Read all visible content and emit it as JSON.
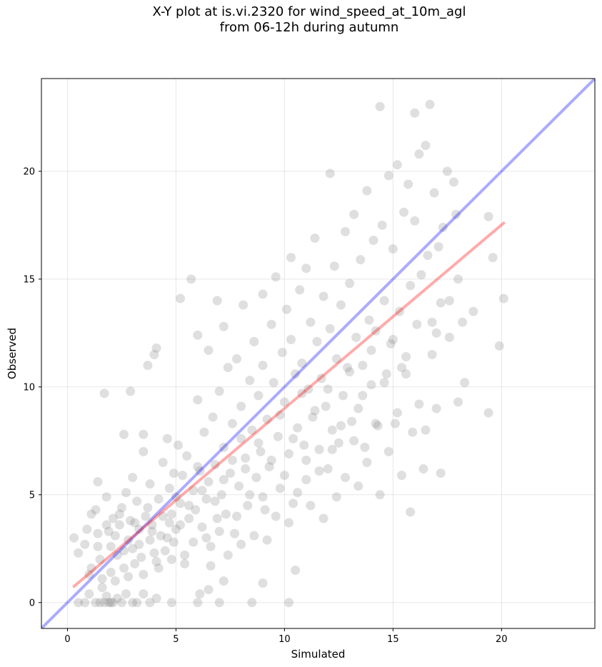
{
  "chart_data": {
    "type": "scatter",
    "title": "X-Y plot at is.vi.2320 for wind_speed_at_10m_agl",
    "subtitle": "from 06-12h during autumn",
    "xlabel": "Simulated",
    "ylabel": "Observed",
    "xlim": [
      -1.2,
      24.3
    ],
    "ylim": [
      -1.2,
      24.3
    ],
    "xticks": [
      0,
      5,
      10,
      15,
      20
    ],
    "yticks": [
      0,
      5,
      10,
      15,
      20
    ],
    "grid": true,
    "point_color": "#808080",
    "point_opacity": 0.25,
    "series": [
      {
        "name": "",
        "points": [
          [
            0.3,
            3.0
          ],
          [
            0.5,
            2.3
          ],
          [
            0.8,
            2.7
          ],
          [
            0.9,
            3.4
          ],
          [
            1.1,
            1.6
          ],
          [
            1.1,
            4.1
          ],
          [
            1.3,
            4.3
          ],
          [
            1.4,
            5.6
          ],
          [
            1.4,
            3.2
          ],
          [
            1.5,
            2.0
          ],
          [
            1.6,
            0.7
          ],
          [
            1.7,
            9.7
          ],
          [
            1.8,
            4.9
          ],
          [
            1.9,
            3.3
          ],
          [
            2.0,
            2.6
          ],
          [
            2.0,
            1.4
          ],
          [
            2.1,
            3.9
          ],
          [
            2.2,
            3.1
          ],
          [
            2.3,
            2.2
          ],
          [
            2.4,
            3.6
          ],
          [
            2.5,
            4.4
          ],
          [
            2.6,
            7.8
          ],
          [
            2.6,
            1.6
          ],
          [
            2.7,
            5.1
          ],
          [
            2.8,
            2.9
          ],
          [
            2.9,
            9.8
          ],
          [
            2.9,
            3.8
          ],
          [
            3.0,
            5.8
          ],
          [
            3.0,
            2.5
          ],
          [
            3.1,
            1.8
          ],
          [
            3.2,
            4.7
          ],
          [
            3.3,
            3.4
          ],
          [
            3.4,
            2.1
          ],
          [
            3.5,
            7.8
          ],
          [
            3.5,
            7.0
          ],
          [
            3.6,
            4.0
          ],
          [
            3.7,
            11.0
          ],
          [
            3.8,
            2.9
          ],
          [
            3.8,
            5.5
          ],
          [
            3.9,
            3.6
          ],
          [
            4.0,
            11.5
          ],
          [
            4.1,
            11.8
          ],
          [
            4.1,
            1.9
          ],
          [
            4.2,
            4.8
          ],
          [
            4.3,
            3.1
          ],
          [
            4.4,
            6.5
          ],
          [
            4.5,
            2.4
          ],
          [
            4.6,
            7.6
          ],
          [
            4.7,
            5.3
          ],
          [
            4.7,
            3.7
          ],
          [
            4.8,
            4.1
          ],
          [
            4.9,
            6.0
          ],
          [
            4.9,
            2.8
          ],
          [
            5.0,
            3.4
          ],
          [
            5.1,
            7.3
          ],
          [
            5.2,
            14.1
          ],
          [
            5.2,
            4.6
          ],
          [
            5.3,
            5.9
          ],
          [
            5.4,
            2.2
          ],
          [
            5.5,
            6.8
          ],
          [
            5.6,
            3.9
          ],
          [
            5.7,
            15.0
          ],
          [
            5.8,
            5.2
          ],
          [
            5.9,
            4.3
          ],
          [
            6.0,
            9.4
          ],
          [
            6.0,
            12.4
          ],
          [
            6.1,
            6.1
          ],
          [
            6.2,
            3.5
          ],
          [
            6.3,
            7.9
          ],
          [
            6.4,
            4.8
          ],
          [
            6.5,
            11.7
          ],
          [
            6.5,
            5.6
          ],
          [
            6.6,
            2.6
          ],
          [
            6.7,
            8.6
          ],
          [
            6.8,
            6.4
          ],
          [
            6.9,
            14.0
          ],
          [
            6.9,
            3.9
          ],
          [
            7.0,
            9.8
          ],
          [
            7.1,
            5.0
          ],
          [
            7.2,
            12.8
          ],
          [
            7.2,
            7.2
          ],
          [
            7.3,
            4.1
          ],
          [
            7.4,
            10.9
          ],
          [
            7.5,
            6.0
          ],
          [
            7.6,
            8.3
          ],
          [
            7.7,
            3.2
          ],
          [
            7.8,
            11.3
          ],
          [
            7.9,
            5.4
          ],
          [
            8.0,
            9.1
          ],
          [
            8.0,
            7.6
          ],
          [
            8.1,
            13.8
          ],
          [
            8.2,
            6.7
          ],
          [
            8.3,
            4.5
          ],
          [
            8.4,
            10.3
          ],
          [
            8.5,
            8.0
          ],
          [
            8.6,
            12.1
          ],
          [
            8.7,
            5.8
          ],
          [
            8.8,
            9.6
          ],
          [
            8.9,
            7.0
          ],
          [
            9.0,
            14.3
          ],
          [
            9.0,
            11.0
          ],
          [
            9.1,
            4.3
          ],
          [
            9.2,
            8.5
          ],
          [
            9.3,
            6.3
          ],
          [
            9.4,
            12.9
          ],
          [
            9.5,
            10.2
          ],
          [
            9.6,
            15.1
          ],
          [
            9.7,
            7.7
          ],
          [
            9.8,
            5.3
          ],
          [
            9.9,
            11.6
          ],
          [
            10.0,
            9.3
          ],
          [
            10.1,
            13.6
          ],
          [
            10.2,
            6.9
          ],
          [
            10.3,
            16.0
          ],
          [
            10.3,
            12.2
          ],
          [
            10.4,
            4.6
          ],
          [
            10.5,
            10.6
          ],
          [
            10.6,
            8.1
          ],
          [
            10.7,
            14.5
          ],
          [
            10.8,
            11.1
          ],
          [
            10.9,
            7.3
          ],
          [
            11.0,
            15.5
          ],
          [
            11.0,
            5.7
          ],
          [
            11.1,
            9.9
          ],
          [
            11.2,
            13.0
          ],
          [
            11.3,
            8.6
          ],
          [
            11.4,
            16.9
          ],
          [
            11.5,
            12.1
          ],
          [
            11.6,
            7.1
          ],
          [
            11.7,
            10.4
          ],
          [
            11.8,
            14.2
          ],
          [
            11.9,
            9.1
          ],
          [
            12.0,
            6.2
          ],
          [
            12.1,
            19.9
          ],
          [
            12.1,
            12.7
          ],
          [
            12.2,
            8.0
          ],
          [
            12.3,
            15.6
          ],
          [
            12.4,
            11.3
          ],
          [
            12.5,
            7.4
          ],
          [
            12.6,
            13.8
          ],
          [
            12.7,
            9.6
          ],
          [
            12.8,
            17.2
          ],
          [
            12.9,
            10.9
          ],
          [
            13.0,
            14.8
          ],
          [
            13.1,
            8.4
          ],
          [
            13.2,
            18.0
          ],
          [
            13.3,
            12.3
          ],
          [
            13.4,
            9.0
          ],
          [
            13.5,
            15.9
          ],
          [
            13.6,
            11.0
          ],
          [
            13.7,
            7.2
          ],
          [
            13.8,
            19.1
          ],
          [
            13.9,
            13.1
          ],
          [
            14.0,
            10.1
          ],
          [
            14.1,
            16.8
          ],
          [
            14.2,
            12.6
          ],
          [
            14.3,
            8.2
          ],
          [
            14.4,
            23.0
          ],
          [
            14.5,
            17.5
          ],
          [
            14.6,
            14.0
          ],
          [
            14.7,
            10.6
          ],
          [
            14.8,
            19.8
          ],
          [
            14.9,
            12.0
          ],
          [
            15.0,
            16.4
          ],
          [
            15.1,
            8.3
          ],
          [
            15.2,
            20.3
          ],
          [
            15.3,
            13.5
          ],
          [
            15.4,
            10.9
          ],
          [
            15.5,
            18.1
          ],
          [
            15.6,
            11.4
          ],
          [
            15.7,
            19.4
          ],
          [
            15.8,
            14.7
          ],
          [
            15.9,
            7.9
          ],
          [
            16.0,
            22.7
          ],
          [
            16.0,
            17.7
          ],
          [
            16.1,
            12.9
          ],
          [
            16.2,
            20.8
          ],
          [
            16.3,
            15.2
          ],
          [
            16.4,
            6.2
          ],
          [
            16.5,
            21.2
          ],
          [
            16.6,
            16.1
          ],
          [
            16.7,
            23.1
          ],
          [
            16.8,
            13.0
          ],
          [
            16.9,
            19.0
          ],
          [
            17.0,
            12.5
          ],
          [
            17.1,
            16.5
          ],
          [
            17.2,
            13.9
          ],
          [
            17.3,
            17.4
          ],
          [
            17.5,
            20.0
          ],
          [
            17.6,
            14.0
          ],
          [
            17.8,
            19.5
          ],
          [
            17.9,
            18.0
          ],
          [
            18.0,
            15.0
          ],
          [
            18.2,
            13.0
          ],
          [
            18.3,
            10.2
          ],
          [
            18.7,
            13.5
          ],
          [
            19.4,
            8.8
          ],
          [
            19.4,
            17.9
          ],
          [
            19.6,
            16.0
          ],
          [
            19.9,
            11.9
          ],
          [
            20.1,
            14.1
          ],
          [
            0.5,
            0.0
          ],
          [
            0.8,
            0.0
          ],
          [
            1.0,
            0.4
          ],
          [
            1.3,
            0.0
          ],
          [
            1.5,
            0.0
          ],
          [
            1.7,
            0.0
          ],
          [
            1.8,
            0.3
          ],
          [
            1.9,
            0.0
          ],
          [
            2.0,
            0.0
          ],
          [
            2.1,
            0.0
          ],
          [
            2.3,
            0.2
          ],
          [
            2.5,
            0.0
          ],
          [
            2.7,
            0.4
          ],
          [
            3.0,
            0.0
          ],
          [
            3.2,
            0.0
          ],
          [
            3.5,
            0.4
          ],
          [
            3.8,
            0.0
          ],
          [
            4.1,
            0.2
          ],
          [
            4.8,
            0.0
          ],
          [
            6.0,
            0.0
          ],
          [
            6.1,
            0.4
          ],
          [
            6.5,
            0.6
          ],
          [
            7.0,
            0.0
          ],
          [
            7.2,
            1.0
          ],
          [
            8.5,
            0.0
          ],
          [
            9.0,
            0.9
          ],
          [
            10.2,
            0.0
          ],
          [
            10.5,
            1.5
          ],
          [
            1.0,
            1.3
          ],
          [
            1.4,
            2.6
          ],
          [
            1.6,
            1.1
          ],
          [
            1.8,
            3.6
          ],
          [
            2.2,
            1.0
          ],
          [
            2.4,
            4.1
          ],
          [
            2.6,
            2.4
          ],
          [
            2.8,
            1.2
          ],
          [
            3.1,
            3.7
          ],
          [
            3.3,
            2.7
          ],
          [
            3.5,
            1.3
          ],
          [
            3.7,
            4.4
          ],
          [
            3.9,
            3.3
          ],
          [
            4.0,
            2.3
          ],
          [
            4.2,
            1.6
          ],
          [
            4.4,
            4.0
          ],
          [
            4.6,
            3.0
          ],
          [
            4.8,
            2.0
          ],
          [
            5.0,
            4.9
          ],
          [
            5.2,
            3.6
          ],
          [
            5.4,
            1.8
          ],
          [
            5.6,
            4.5
          ],
          [
            5.8,
            2.8
          ],
          [
            6.0,
            6.3
          ],
          [
            6.2,
            5.2
          ],
          [
            6.4,
            3.0
          ],
          [
            6.6,
            1.7
          ],
          [
            6.8,
            4.7
          ],
          [
            7.0,
            3.3
          ],
          [
            7.2,
            5.7
          ],
          [
            7.4,
            2.2
          ],
          [
            7.6,
            6.6
          ],
          [
            7.8,
            4.0
          ],
          [
            8.0,
            2.7
          ],
          [
            8.2,
            6.2
          ],
          [
            8.4,
            5.0
          ],
          [
            8.6,
            3.1
          ],
          [
            8.8,
            7.4
          ],
          [
            9.0,
            4.9
          ],
          [
            9.2,
            2.9
          ],
          [
            9.4,
            6.6
          ],
          [
            9.6,
            4.0
          ],
          [
            9.8,
            8.7
          ],
          [
            10.0,
            5.9
          ],
          [
            10.2,
            3.7
          ],
          [
            10.4,
            7.6
          ],
          [
            10.6,
            5.1
          ],
          [
            10.8,
            9.7
          ],
          [
            11.0,
            6.6
          ],
          [
            11.2,
            4.5
          ],
          [
            11.4,
            8.9
          ],
          [
            11.6,
            6.1
          ],
          [
            11.8,
            3.9
          ],
          [
            12.0,
            9.9
          ],
          [
            12.2,
            7.1
          ],
          [
            12.4,
            4.9
          ],
          [
            12.6,
            8.2
          ],
          [
            12.8,
            5.8
          ],
          [
            13.0,
            10.7
          ],
          [
            13.2,
            7.5
          ],
          [
            13.4,
            5.4
          ],
          [
            13.6,
            9.6
          ],
          [
            13.8,
            6.5
          ],
          [
            14.0,
            11.7
          ],
          [
            14.2,
            8.3
          ],
          [
            14.4,
            5.0
          ],
          [
            14.6,
            10.2
          ],
          [
            14.8,
            7.0
          ],
          [
            15.0,
            12.2
          ],
          [
            15.2,
            8.8
          ],
          [
            15.4,
            5.9
          ],
          [
            15.6,
            10.6
          ],
          [
            15.8,
            4.2
          ],
          [
            16.2,
            9.2
          ],
          [
            16.5,
            8.0
          ],
          [
            16.8,
            11.5
          ],
          [
            17.0,
            9.0
          ],
          [
            17.2,
            6.0
          ],
          [
            17.6,
            12.3
          ],
          [
            18.0,
            9.3
          ]
        ]
      }
    ],
    "lines": [
      {
        "name": "",
        "color": "#0000ff",
        "opacity": 0.33,
        "x": [
          -1.2,
          24.3
        ],
        "y": [
          -1.2,
          24.3
        ]
      },
      {
        "name": "",
        "color": "#ff0000",
        "opacity": 0.33,
        "x": [
          0.3,
          20.1
        ],
        "y": [
          0.75,
          17.6
        ]
      }
    ]
  }
}
